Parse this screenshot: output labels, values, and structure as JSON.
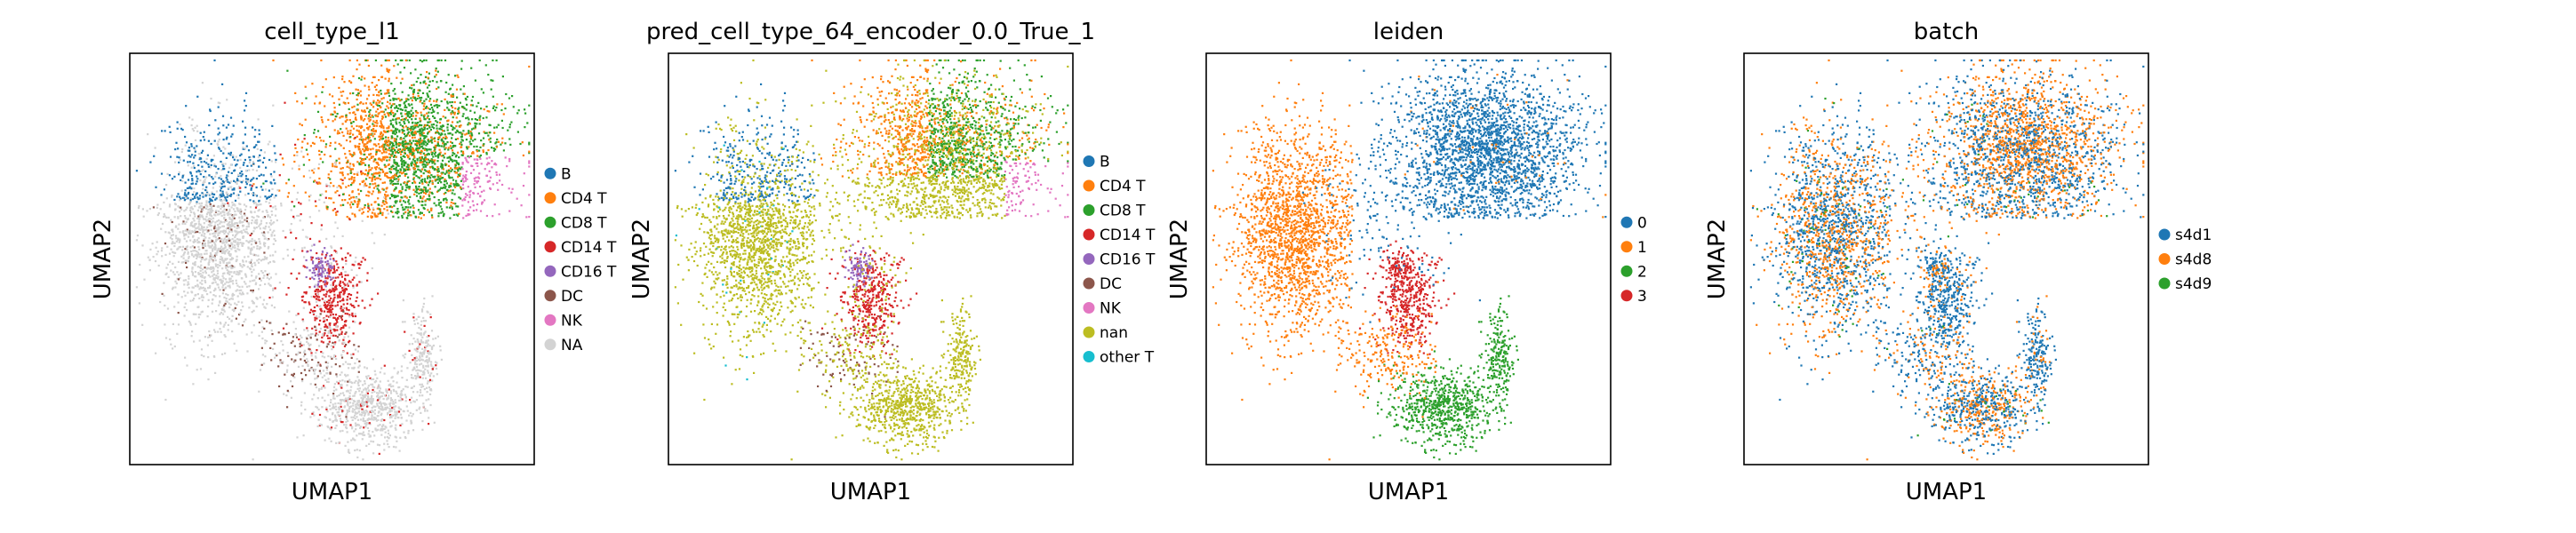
{
  "figure": {
    "background": "#ffffff"
  },
  "chart_data": [
    {
      "type": "scatter",
      "title": "cell_type_l1",
      "xlabel": "UMAP1",
      "ylabel": "UMAP2",
      "grid": false,
      "legend_position": "right",
      "legend": [
        {
          "label": "B",
          "color": "#1f77b4"
        },
        {
          "label": "CD4 T",
          "color": "#ff7f0e"
        },
        {
          "label": "CD8 T",
          "color": "#2ca02c"
        },
        {
          "label": "CD14 T",
          "color": "#d62728"
        },
        {
          "label": "CD16 T",
          "color": "#9467bd"
        },
        {
          "label": "DC",
          "color": "#8c564b"
        },
        {
          "label": "NK",
          "color": "#e377c2"
        },
        {
          "label": "NA",
          "color": "#d3d3d3"
        }
      ]
    },
    {
      "type": "scatter",
      "title": "pred_cell_type_64_encoder_0.0_True_1",
      "xlabel": "UMAP1",
      "ylabel": "UMAP2",
      "grid": false,
      "legend_position": "right",
      "legend": [
        {
          "label": "B",
          "color": "#1f77b4"
        },
        {
          "label": "CD4 T",
          "color": "#ff7f0e"
        },
        {
          "label": "CD8 T",
          "color": "#2ca02c"
        },
        {
          "label": "CD14 T",
          "color": "#d62728"
        },
        {
          "label": "CD16 T",
          "color": "#9467bd"
        },
        {
          "label": "DC",
          "color": "#8c564b"
        },
        {
          "label": "NK",
          "color": "#e377c2"
        },
        {
          "label": "nan",
          "color": "#bcbd22"
        },
        {
          "label": "other T",
          "color": "#17becf"
        }
      ]
    },
    {
      "type": "scatter",
      "title": "leiden",
      "xlabel": "UMAP1",
      "ylabel": "UMAP2",
      "grid": false,
      "legend_position": "right",
      "legend": [
        {
          "label": "0",
          "color": "#1f77b4"
        },
        {
          "label": "1",
          "color": "#ff7f0e"
        },
        {
          "label": "2",
          "color": "#2ca02c"
        },
        {
          "label": "3",
          "color": "#d62728"
        }
      ]
    },
    {
      "type": "scatter",
      "title": "batch",
      "xlabel": "UMAP1",
      "ylabel": "UMAP2",
      "grid": false,
      "legend_position": "right",
      "legend": [
        {
          "label": "s4d1",
          "color": "#1f77b4"
        },
        {
          "label": "s4d8",
          "color": "#ff7f0e"
        },
        {
          "label": "s4d9",
          "color": "#2ca02c"
        }
      ]
    }
  ]
}
